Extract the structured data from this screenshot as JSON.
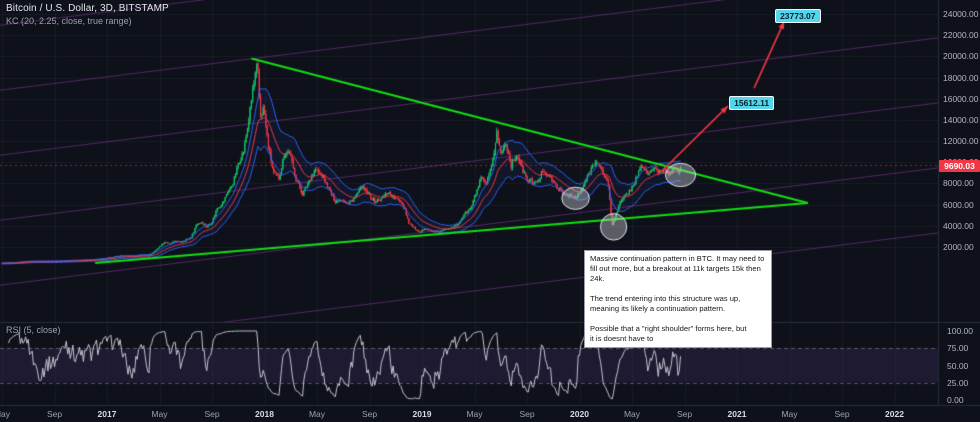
{
  "header": {
    "symbol_title": "Bitcoin / U.S. Dollar, 3D, BITSTAMP",
    "indicator_label": "KC (20, 2.25, close, true range)"
  },
  "rsi_panel": {
    "label": "RSI (5, close)",
    "period": 5,
    "ticks": [
      "100.00",
      "75.00",
      "50.00",
      "25.00",
      "0.00"
    ],
    "tick_values": [
      100,
      75,
      50,
      25,
      0
    ],
    "band": [
      25,
      75
    ]
  },
  "price_axis": {
    "ticks": [
      "24000.00",
      "22000.00",
      "20000.00",
      "18000.00",
      "16000.00",
      "14000.00",
      "12000.00",
      "10000.00",
      "8000.00",
      "6000.00",
      "4000.00",
      "2000.00"
    ],
    "tick_values": [
      24000,
      22000,
      20000,
      18000,
      16000,
      14000,
      12000,
      10000,
      8000,
      6000,
      4000,
      2000
    ],
    "last_price": "9690.03",
    "last_price_value": 9690.03,
    "last_price_color": "#f23645"
  },
  "time_axis": {
    "labels": [
      "May",
      "Sep",
      "2017",
      "May",
      "Sep",
      "2018",
      "May",
      "Sep",
      "2019",
      "May",
      "Sep",
      "2020",
      "May",
      "Sep",
      "2021",
      "May",
      "Sep",
      "2022"
    ]
  },
  "targets": [
    {
      "label": "23773.07",
      "value": 23773.07,
      "t": 58.9
    },
    {
      "label": "15612.11",
      "value": 15612.11,
      "t": 55.4
    }
  ],
  "note": {
    "text": "Massive continuation pattern in BTC. It may need to fill out more, but a breakout at 11k targets 15k then 24k.\n\nThe trend entering into this structure was up, meaning its likely a continuation pattern.\n\nPossible that a \"right shoulder\" forms here, but\nit is doesnt have to"
  },
  "chart_data": {
    "type": "candlestick",
    "title": "Bitcoin / U.S. Dollar, 3D, BITSTAMP",
    "x_unit": "months since 2016-05",
    "ylim": [
      0,
      24500
    ],
    "keltner": {
      "period": 20,
      "mult": 2.25
    },
    "anchors": {
      "t": [
        0,
        1,
        2,
        3,
        4,
        5,
        6,
        7,
        8,
        9,
        10,
        10.6,
        11.2,
        11.8,
        12.4,
        12.8,
        13.2,
        13.6,
        14,
        14.4,
        14.8,
        15.2,
        15.6,
        16,
        16.4,
        16.8,
        17.2,
        17.6,
        18,
        18.4,
        18.8,
        19.1,
        19.45,
        19.7,
        19.95,
        20.3,
        20.7,
        21.1,
        21.5,
        21.9,
        22.4,
        22.9,
        23.4,
        23.9,
        24.4,
        24.9,
        25.4,
        25.9,
        26.4,
        26.9,
        27.4,
        27.9,
        28.4,
        28.9,
        29.4,
        29.9,
        30.4,
        30.7,
        31,
        31.4,
        31.8,
        32.2,
        32.7,
        33.2,
        33.7,
        34.2,
        34.7,
        35.2,
        35.7,
        36.1,
        36.5,
        36.9,
        37.3,
        37.7,
        38,
        38.4,
        38.8,
        39.2,
        39.6,
        40,
        40.4,
        40.8,
        41.2,
        41.7,
        42.2,
        42.7,
        43.2,
        43.7,
        44.1,
        44.5,
        44.9,
        45.2,
        45.5,
        45.9,
        46.2,
        46.5,
        46.8,
        47.1,
        47.5,
        48,
        48.4,
        48.8,
        49.2,
        49.6,
        50,
        50.4,
        50.8,
        51.2,
        51.5,
        51.8
      ],
      "close": [
        450,
        530,
        670,
        610,
        630,
        700,
        730,
        790,
        960,
        1180,
        1080,
        1250,
        1200,
        1800,
        2500,
        2300,
        2550,
        2450,
        2650,
        2900,
        4100,
        4350,
        3900,
        4380,
        5700,
        6100,
        7200,
        8000,
        9900,
        11000,
        14000,
        16800,
        19300,
        14500,
        15100,
        11500,
        9000,
        8500,
        10800,
        11000,
        8500,
        7000,
        8300,
        9300,
        8700,
        7500,
        6300,
        6500,
        6100,
        6700,
        7700,
        7000,
        6300,
        6500,
        7200,
        6600,
        6300,
        5600,
        4300,
        3800,
        3300,
        3800,
        3500,
        3400,
        3600,
        3900,
        4050,
        5100,
        5600,
        7000,
        8500,
        7900,
        9500,
        12900,
        10800,
        11900,
        9700,
        10800,
        9500,
        8300,
        8200,
        8000,
        9300,
        8700,
        7800,
        7100,
        6900,
        6600,
        7200,
        8400,
        9400,
        10200,
        9600,
        8800,
        7900,
        4100,
        5300,
        6200,
        6800,
        7600,
        8800,
        9700,
        8900,
        9400,
        9100,
        9300,
        9100,
        9450,
        9150,
        9690
      ]
    },
    "triangle": {
      "upper": [
        [
          19.0,
          19800
        ],
        [
          61.4,
          6150
        ]
      ],
      "lower": [
        [
          7.1,
          500
        ],
        [
          61.4,
          6150
        ]
      ]
    },
    "channel_lines": {
      "slope_per_month": 155,
      "intercepts": [
        22961,
        16824,
        10688,
        4551,
        -1586,
        -7723
      ]
    },
    "ellipses": [
      {
        "t": 43.7,
        "p": 6600,
        "rt": 1.05,
        "rp": 1050
      },
      {
        "t": 46.6,
        "p": 3900,
        "rt": 1.0,
        "rp": 1250
      },
      {
        "t": 51.7,
        "p": 8800,
        "rt": 1.15,
        "rp": 1100
      }
    ],
    "arrows": [
      {
        "from": [
          50.3,
          9200
        ],
        "to": [
          55.3,
          15300
        ]
      },
      {
        "from": [
          57.3,
          17000
        ],
        "to": [
          59.6,
          23300
        ]
      }
    ],
    "colors": {
      "up": "#17c16e",
      "down": "#f23645",
      "kc_band": "#2d63f6",
      "kc_mid": "#f23645",
      "triangle": "#12df12",
      "channel": "#8e3ba4",
      "arrow": "#f23645",
      "rsi_line": "#c2c5cf",
      "rsi_band_fill": "#7e57c2",
      "ellipse": "#d7dae2"
    }
  }
}
